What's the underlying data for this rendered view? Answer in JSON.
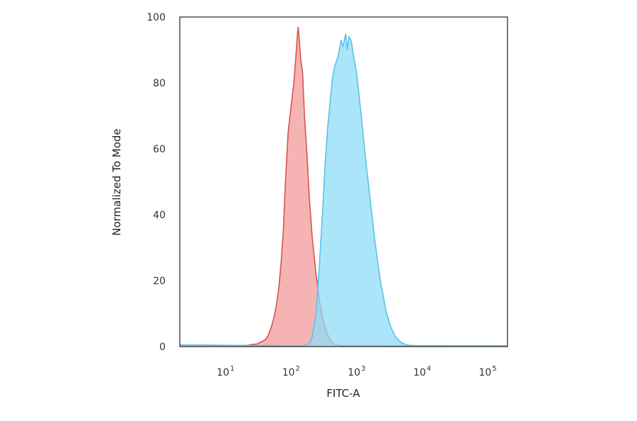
{
  "chart_data": {
    "type": "area",
    "xlabel": "FITC-A",
    "ylabel": "Normalized To Mode",
    "x_scale": "log",
    "xlim": [
      2,
      200000
    ],
    "ylim": [
      0,
      100
    ],
    "grid": false,
    "legend": "none",
    "y_ticks": [
      {
        "value": 0,
        "label": "0"
      },
      {
        "value": 20,
        "label": "20"
      },
      {
        "value": 40,
        "label": "40"
      },
      {
        "value": 60,
        "label": "60"
      },
      {
        "value": 80,
        "label": "80"
      },
      {
        "value": 100,
        "label": "100"
      }
    ],
    "x_ticks": [
      {
        "value": 10,
        "base": "10",
        "exp": "1"
      },
      {
        "value": 100,
        "base": "10",
        "exp": "2"
      },
      {
        "value": 1000,
        "base": "10",
        "exp": "3"
      },
      {
        "value": 10000,
        "base": "10",
        "exp": "4"
      },
      {
        "value": 100000,
        "base": "10",
        "exp": "5"
      }
    ],
    "series": [
      {
        "fill": "#f08a8a",
        "stroke": "#d9534f",
        "fill_opacity": 0.65,
        "points": [
          [
            2,
            0.5
          ],
          [
            20,
            0.3
          ],
          [
            25,
            0.6
          ],
          [
            30,
            0.8
          ],
          [
            40,
            2
          ],
          [
            45,
            3.5
          ],
          [
            50,
            6
          ],
          [
            55,
            9
          ],
          [
            60,
            13
          ],
          [
            65,
            18
          ],
          [
            70,
            25
          ],
          [
            76,
            35
          ],
          [
            82,
            50
          ],
          [
            90,
            65
          ],
          [
            100,
            73
          ],
          [
            110,
            80
          ],
          [
            118,
            88
          ],
          [
            125,
            95
          ],
          [
            128,
            97
          ],
          [
            132,
            94
          ],
          [
            140,
            87
          ],
          [
            150,
            83
          ],
          [
            160,
            70
          ],
          [
            175,
            58
          ],
          [
            190,
            45
          ],
          [
            210,
            33
          ],
          [
            240,
            22
          ],
          [
            270,
            14
          ],
          [
            300,
            9
          ],
          [
            340,
            5
          ],
          [
            390,
            2
          ],
          [
            450,
            0.8
          ],
          [
            550,
            0.3
          ],
          [
            200000,
            0.2
          ]
        ]
      },
      {
        "fill": "#8fdcf7",
        "stroke": "#5bc2ea",
        "fill_opacity": 0.75,
        "points": [
          [
            2,
            0.5
          ],
          [
            150,
            0.2
          ],
          [
            170,
            0.5
          ],
          [
            190,
            1
          ],
          [
            210,
            3
          ],
          [
            240,
            10
          ],
          [
            270,
            25
          ],
          [
            300,
            40
          ],
          [
            330,
            55
          ],
          [
            360,
            66
          ],
          [
            400,
            76
          ],
          [
            430,
            82
          ],
          [
            460,
            85
          ],
          [
            520,
            88
          ],
          [
            580,
            93
          ],
          [
            620,
            91
          ],
          [
            680,
            95
          ],
          [
            720,
            90
          ],
          [
            760,
            94
          ],
          [
            820,
            93
          ],
          [
            900,
            88
          ],
          [
            1000,
            83
          ],
          [
            1150,
            72
          ],
          [
            1350,
            58
          ],
          [
            1600,
            45
          ],
          [
            1900,
            32
          ],
          [
            2300,
            20
          ],
          [
            2800,
            11
          ],
          [
            3300,
            6
          ],
          [
            3900,
            3
          ],
          [
            4800,
            1.2
          ],
          [
            6000,
            0.4
          ],
          [
            10000,
            0.2
          ],
          [
            200000,
            0.2
          ]
        ]
      }
    ]
  }
}
